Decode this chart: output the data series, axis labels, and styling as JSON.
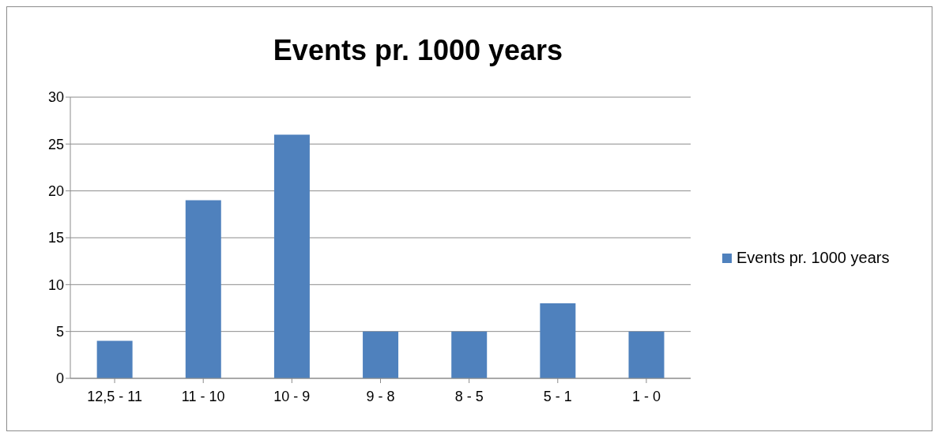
{
  "chart_data": {
    "type": "bar",
    "title": "Events pr. 1000 years",
    "categories": [
      "12,5 - 11",
      "11 - 10",
      "10 - 9",
      "9 - 8",
      "8 - 5",
      "5 - 1",
      "1 - 0"
    ],
    "series": [
      {
        "name": "Events pr. 1000 years",
        "color": "#4f81bd",
        "values": [
          4,
          19,
          26,
          5,
          5,
          8,
          5
        ]
      }
    ],
    "ylim": [
      0,
      30
    ],
    "yticks": [
      0,
      5,
      10,
      15,
      20,
      25,
      30
    ],
    "grid": "y",
    "legend": "right"
  }
}
